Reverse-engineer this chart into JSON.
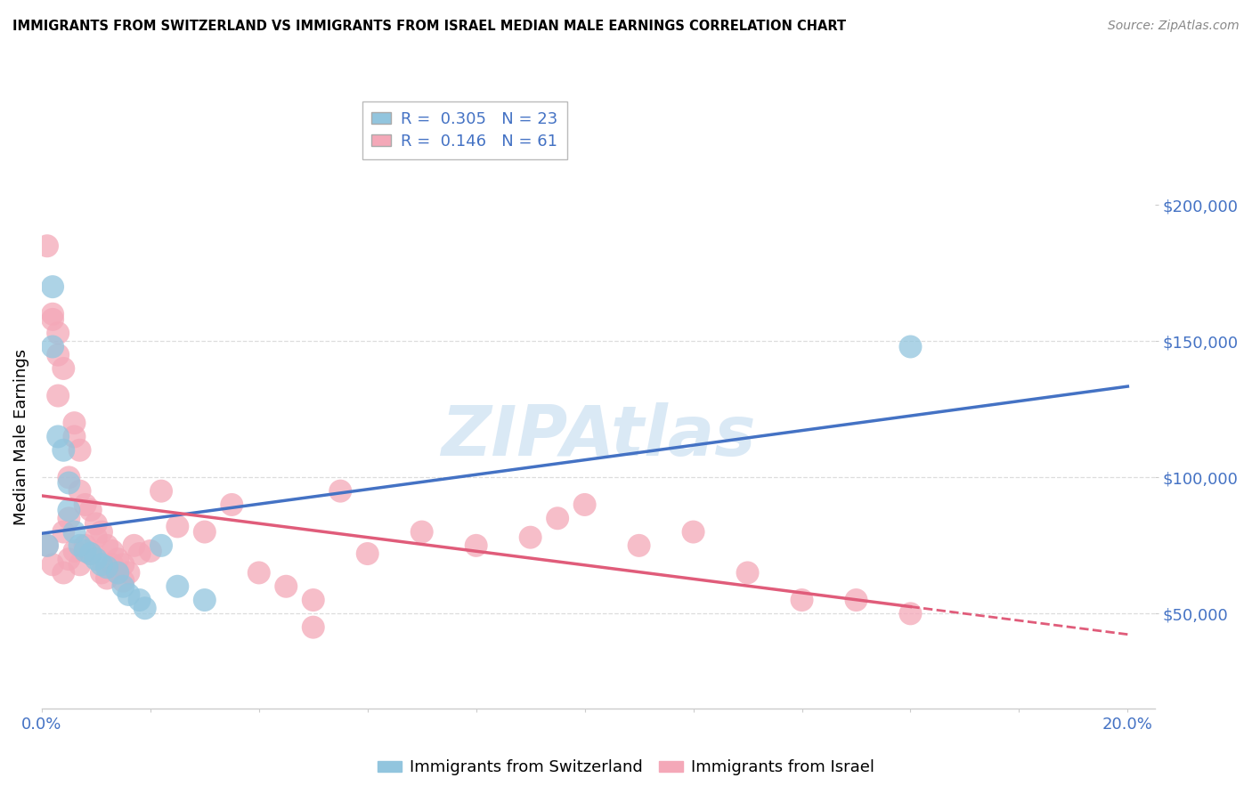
{
  "title": "IMMIGRANTS FROM SWITZERLAND VS IMMIGRANTS FROM ISRAEL MEDIAN MALE EARNINGS CORRELATION CHART",
  "source": "Source: ZipAtlas.com",
  "ylabel": "Median Male Earnings",
  "xlim": [
    0.0,
    0.205
  ],
  "ylim": [
    15000,
    215000
  ],
  "watermark": "ZIPAtlas",
  "legend_r1": "R =  0.305",
  "legend_n1": "N = 23",
  "legend_r2": "R =  0.146",
  "legend_n2": "N = 61",
  "color_swiss": "#92C5DE",
  "color_israel": "#F4A8B8",
  "line_color_swiss": "#4472C4",
  "line_color_israel": "#E05C7A",
  "background_color": "#FFFFFF",
  "swiss_x": [
    0.002,
    0.002,
    0.003,
    0.004,
    0.005,
    0.005,
    0.006,
    0.007,
    0.008,
    0.009,
    0.01,
    0.011,
    0.012,
    0.014,
    0.015,
    0.016,
    0.018,
    0.019,
    0.022,
    0.025,
    0.03,
    0.16,
    0.001
  ],
  "swiss_y": [
    170000,
    148000,
    115000,
    110000,
    98000,
    88000,
    80000,
    75000,
    73000,
    72000,
    70000,
    68000,
    67000,
    65000,
    60000,
    57000,
    55000,
    52000,
    75000,
    60000,
    55000,
    148000,
    75000
  ],
  "israel_x": [
    0.001,
    0.001,
    0.002,
    0.002,
    0.003,
    0.003,
    0.004,
    0.004,
    0.004,
    0.005,
    0.005,
    0.005,
    0.006,
    0.006,
    0.007,
    0.007,
    0.007,
    0.008,
    0.008,
    0.009,
    0.009,
    0.01,
    0.01,
    0.011,
    0.011,
    0.012,
    0.012,
    0.013,
    0.013,
    0.014,
    0.014,
    0.015,
    0.015,
    0.016,
    0.017,
    0.018,
    0.02,
    0.022,
    0.025,
    0.03,
    0.035,
    0.04,
    0.045,
    0.05,
    0.055,
    0.06,
    0.07,
    0.08,
    0.09,
    0.095,
    0.1,
    0.11,
    0.12,
    0.13,
    0.14,
    0.15,
    0.16,
    0.003,
    0.002,
    0.006,
    0.05
  ],
  "israel_y": [
    185000,
    75000,
    158000,
    68000,
    153000,
    145000,
    140000,
    80000,
    65000,
    100000,
    85000,
    70000,
    115000,
    73000,
    110000,
    95000,
    68000,
    90000,
    75000,
    88000,
    72000,
    83000,
    78000,
    80000,
    65000,
    75000,
    63000,
    73000,
    68000,
    70000,
    65000,
    68000,
    62000,
    65000,
    75000,
    72000,
    73000,
    95000,
    82000,
    80000,
    90000,
    65000,
    60000,
    55000,
    95000,
    72000,
    80000,
    75000,
    78000,
    85000,
    90000,
    75000,
    80000,
    65000,
    55000,
    55000,
    50000,
    130000,
    160000,
    120000,
    45000
  ]
}
